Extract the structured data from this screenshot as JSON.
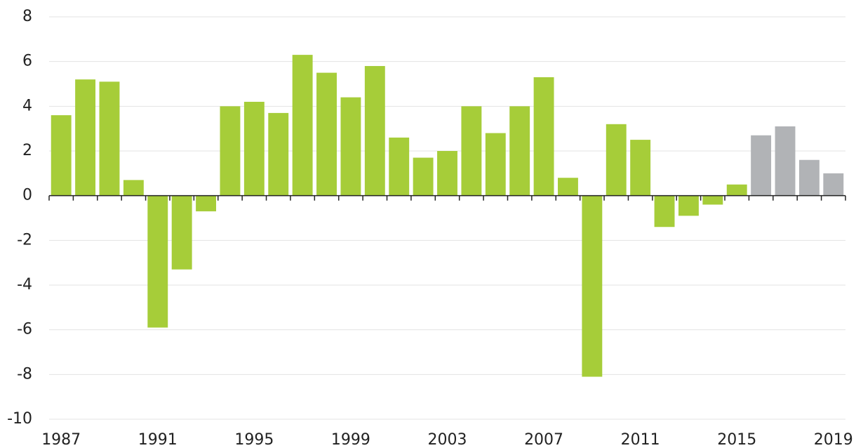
{
  "chart_data": {
    "type": "bar",
    "categories": [
      "1987",
      null,
      null,
      null,
      "1991",
      null,
      null,
      null,
      "1995",
      null,
      null,
      null,
      "1999",
      null,
      null,
      null,
      "2003",
      null,
      null,
      null,
      "2007",
      null,
      null,
      null,
      "2011",
      null,
      null,
      null,
      "2015",
      null,
      null,
      null,
      "2019"
    ],
    "values": [
      3.6,
      5.2,
      5.1,
      0.7,
      -5.9,
      -3.3,
      -0.7,
      4.0,
      4.2,
      3.7,
      6.3,
      5.5,
      4.4,
      5.8,
      2.6,
      1.7,
      2.0,
      4.0,
      2.8,
      4.0,
      5.3,
      0.8,
      -8.1,
      3.2,
      2.5,
      -1.4,
      -0.9,
      -0.4,
      0.5,
      2.7,
      3.1,
      1.6,
      1.0
    ],
    "colors": [
      "#a6cd39",
      "#a6cd39",
      "#a6cd39",
      "#a6cd39",
      "#a6cd39",
      "#a6cd39",
      "#a6cd39",
      "#a6cd39",
      "#a6cd39",
      "#a6cd39",
      "#a6cd39",
      "#a6cd39",
      "#a6cd39",
      "#a6cd39",
      "#a6cd39",
      "#a6cd39",
      "#a6cd39",
      "#a6cd39",
      "#a6cd39",
      "#a6cd39",
      "#a6cd39",
      "#a6cd39",
      "#a6cd39",
      "#a6cd39",
      "#a6cd39",
      "#a6cd39",
      "#a6cd39",
      "#a6cd39",
      "#a6cd39",
      "#b1b3b6",
      "#b1b3b6",
      "#b1b3b6",
      "#b1b3b6"
    ],
    "ylim": [
      -10,
      8
    ],
    "yticks": [
      -10,
      -8,
      -6,
      -4,
      -2,
      0,
      2,
      4,
      6,
      8
    ],
    "grid": true
  }
}
